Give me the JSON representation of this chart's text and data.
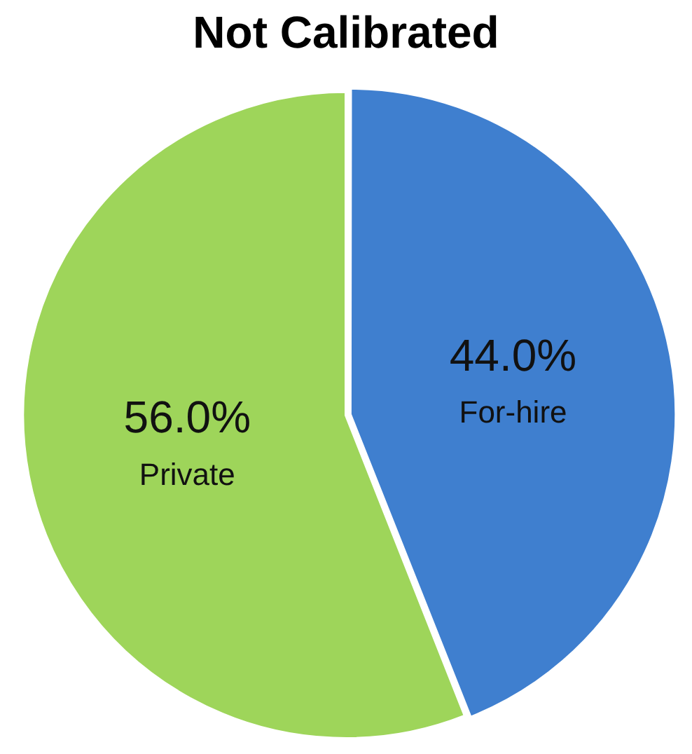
{
  "chart_data": {
    "type": "pie",
    "title": "Not Calibrated",
    "categories": [
      "For-hire",
      "Private"
    ],
    "values": [
      44.0,
      56.0
    ],
    "colors": [
      "#3f7fcf",
      "#9ed55a"
    ],
    "value_labels": [
      "44.0%",
      "56.0%"
    ],
    "legend": false
  }
}
